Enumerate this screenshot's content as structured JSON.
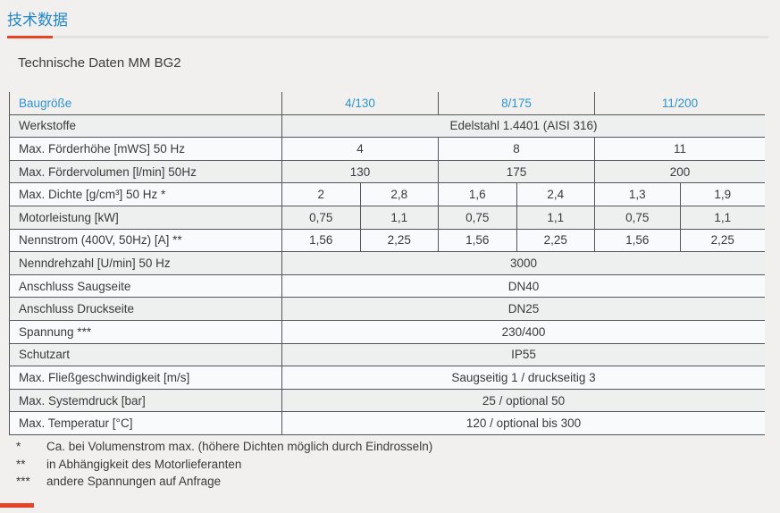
{
  "page": {
    "section_title": "技术数据",
    "subtitle": "Technische Daten MM BG2"
  },
  "colors": {
    "accent_blue": "#2e93ce",
    "title_blue": "#2287c6",
    "accent_red": "#e64426",
    "page_background": "#f1f0ee",
    "border": "#54565a"
  },
  "table": {
    "header": {
      "label": "Baugröße",
      "columns": [
        "4/130",
        "8/175",
        "11/200"
      ]
    },
    "rows": [
      {
        "label": "Werkstoffe",
        "type": "full",
        "value": "Edelstahl 1.4401 (AISI 316)"
      },
      {
        "label": "Max. Förderhöhe [mWS] 50 Hz",
        "type": "per_size",
        "values": [
          "4",
          "8",
          "11"
        ]
      },
      {
        "label": "Max. Fördervolumen [l/min] 50Hz",
        "type": "per_size",
        "values": [
          "130",
          "175",
          "200"
        ]
      },
      {
        "label": "Max. Dichte [g/cm³] 50 Hz *",
        "type": "split",
        "values": [
          "2",
          "2,8",
          "1,6",
          "2,4",
          "1,3",
          "1,9"
        ]
      },
      {
        "label": "Motorleistung [kW]",
        "type": "split",
        "values": [
          "0,75",
          "1,1",
          "0,75",
          "1,1",
          "0,75",
          "1,1"
        ]
      },
      {
        "label": "Nennstrom (400V, 50Hz) [A] **",
        "type": "split",
        "values": [
          "1,56",
          "2,25",
          "1,56",
          "2,25",
          "1,56",
          "2,25"
        ]
      },
      {
        "label": "Nenndrehzahl [U/min] 50 Hz",
        "type": "full",
        "value": "3000"
      },
      {
        "label": "Anschluss Saugseite",
        "type": "full",
        "value": "DN40"
      },
      {
        "label": "Anschluss Druckseite",
        "type": "full",
        "value": "DN25"
      },
      {
        "label": "Spannung ***",
        "type": "full",
        "value": "230/400"
      },
      {
        "label": "Schutzart",
        "type": "full",
        "value": "IP55"
      },
      {
        "label": "Max. Fließgeschwindigkeit [m/s]",
        "type": "full",
        "value": "Saugseitig 1 / druckseitig 3"
      },
      {
        "label": "Max. Systemdruck [bar]",
        "type": "full",
        "value": "25 / optional 50"
      },
      {
        "label": "Max. Temperatur [°C]",
        "type": "full",
        "value": "120 / optional bis 300"
      }
    ]
  },
  "footnotes": [
    {
      "symbol": "*",
      "text": "Ca. bei Volumenstrom max. (höhere Dichten möglich durch Eindrosseln)"
    },
    {
      "symbol": "**",
      "text": "in Abhängigkeit des Motorlieferanten"
    },
    {
      "symbol": "***",
      "text": "andere Spannungen auf Anfrage"
    }
  ]
}
